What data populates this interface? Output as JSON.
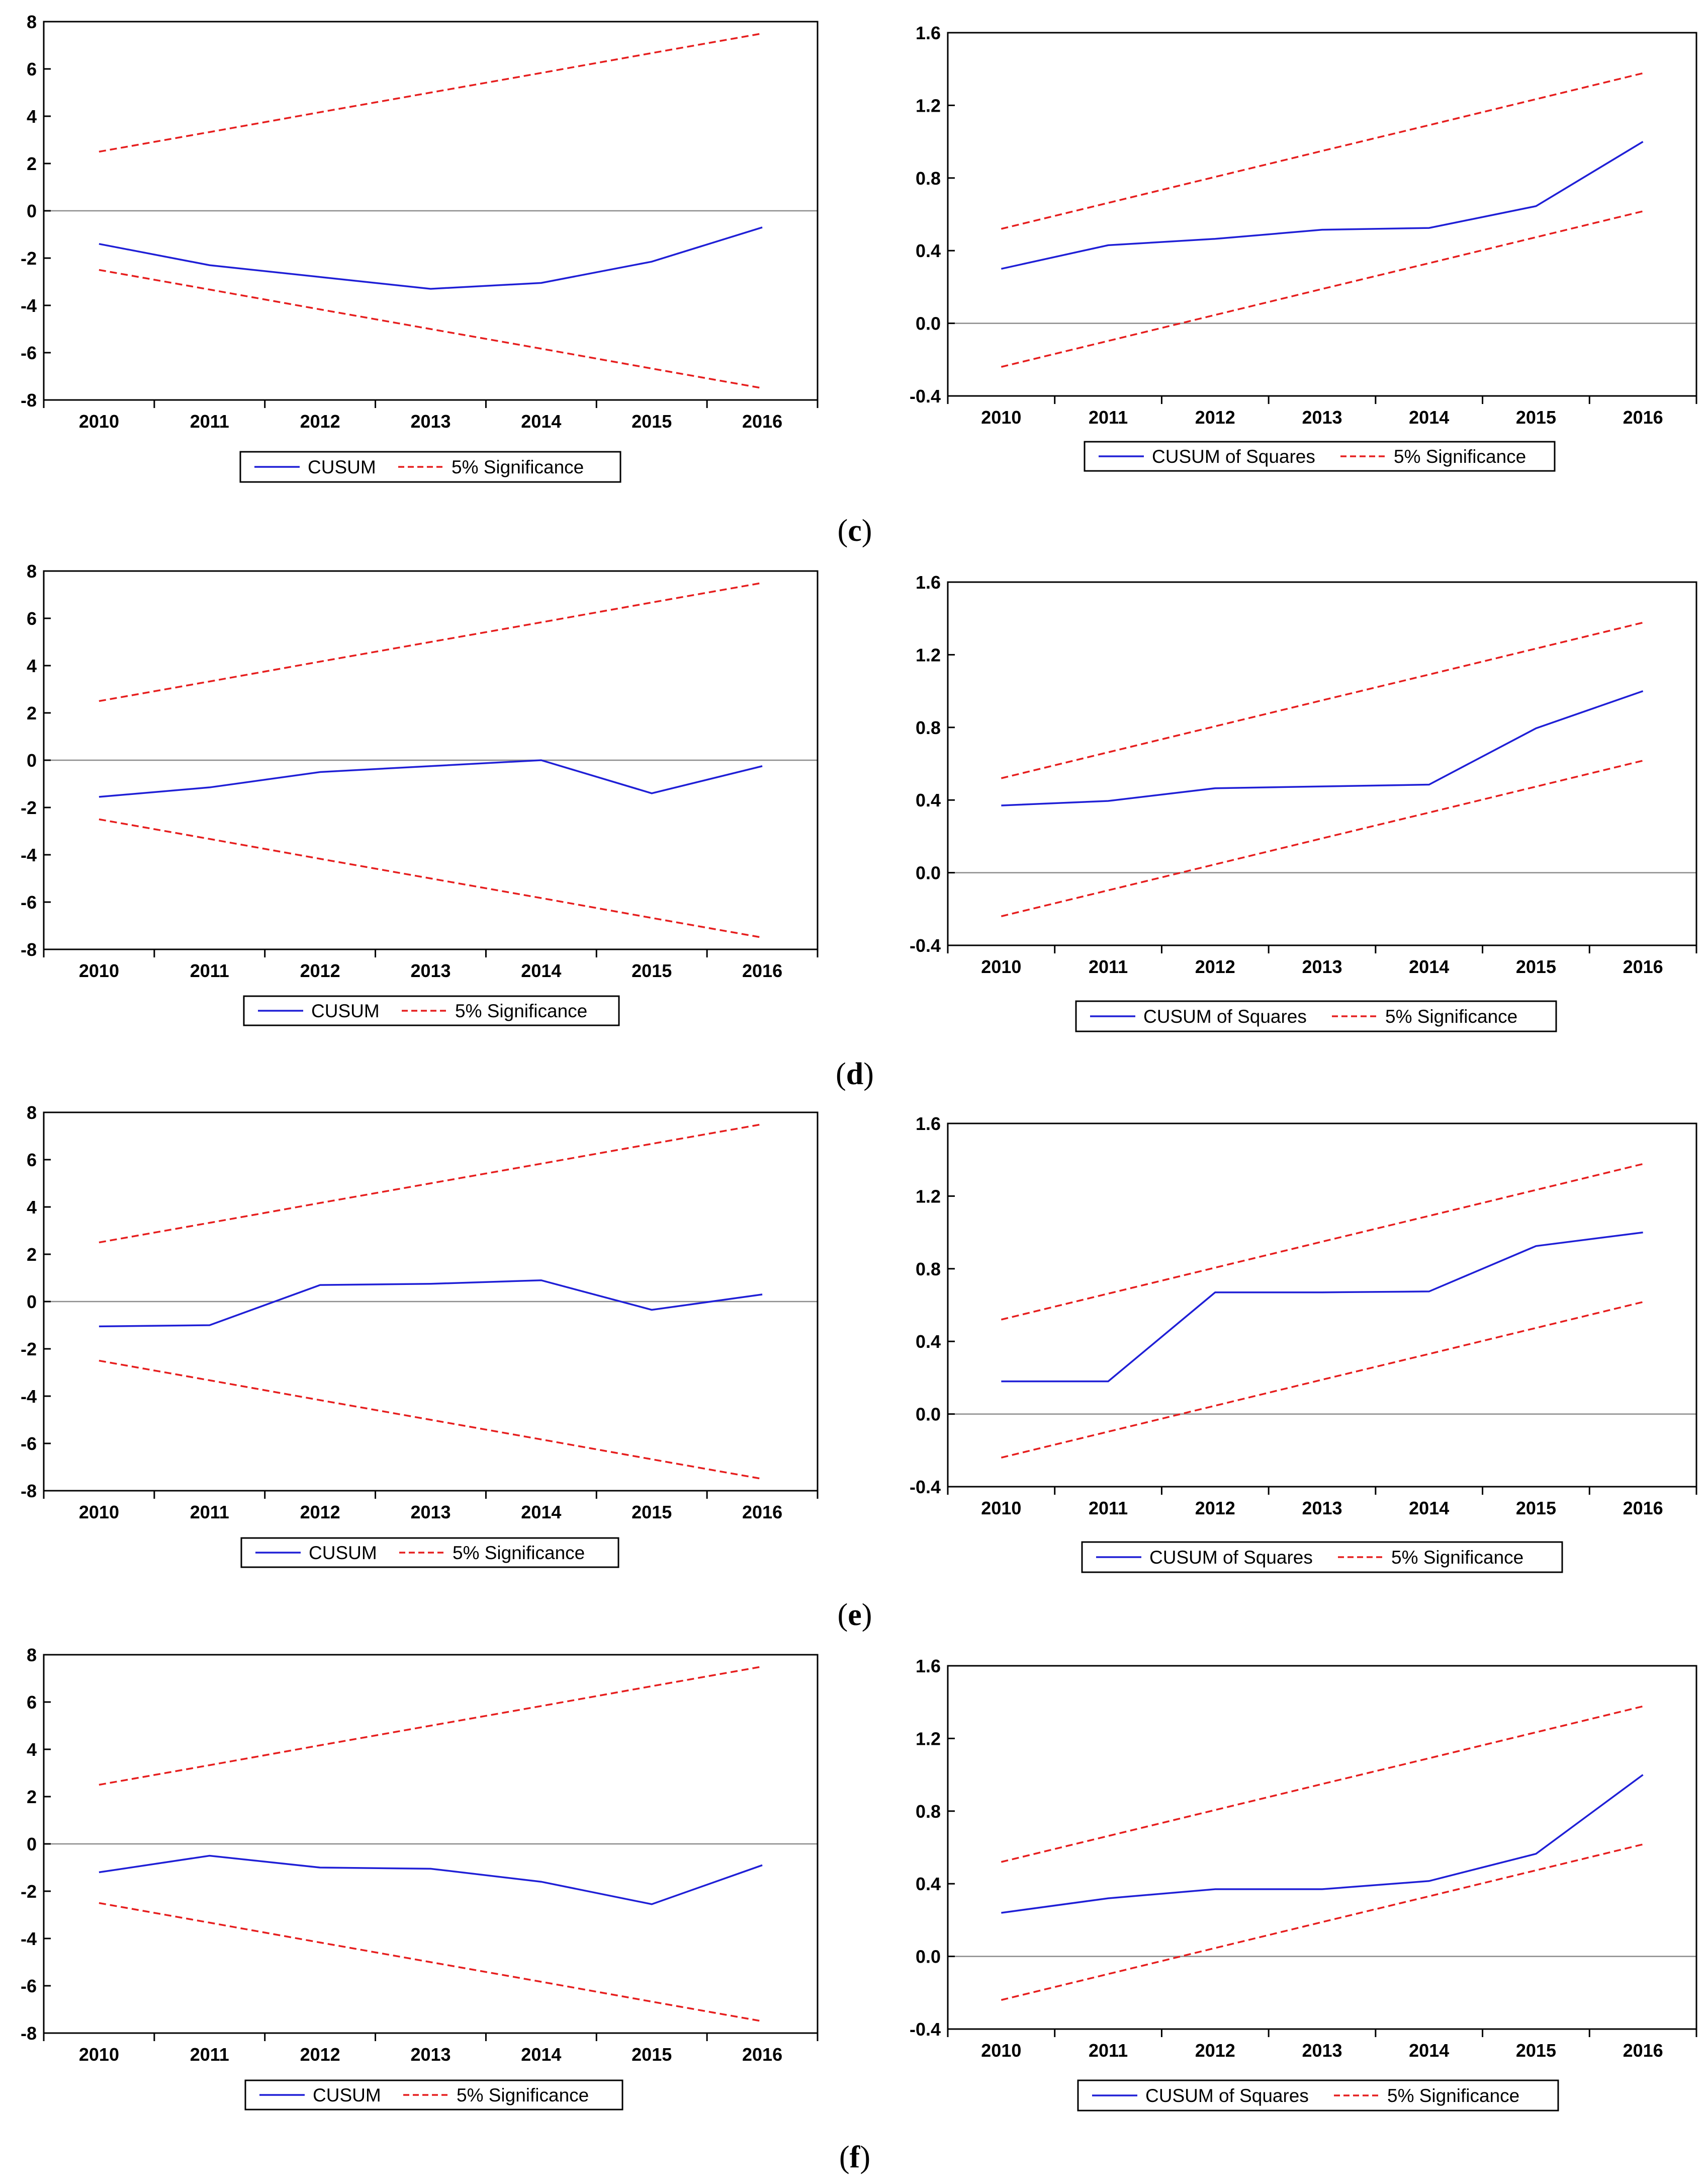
{
  "colors": {
    "cusum": "#1f1fd6",
    "significance": "#e61e1e",
    "zero_line": "#8c8c8c",
    "axis": "#000000"
  },
  "groups": [
    {
      "caption_letter": "c"
    },
    {
      "caption_letter": "d"
    },
    {
      "caption_letter": "e"
    },
    {
      "caption_letter": "f"
    }
  ],
  "chart_data": [
    {
      "group": "c",
      "type": "line",
      "title": "",
      "xlabel": "",
      "ylabel": "",
      "x": [
        "2010",
        "2011",
        "2012",
        "2013",
        "2014",
        "2015",
        "2016"
      ],
      "ylim": [
        -8,
        8
      ],
      "yticks": [
        "8",
        "6",
        "4",
        "2",
        "0",
        "-2",
        "-4",
        "-6",
        "-8"
      ],
      "series": [
        {
          "name": "CUSUM",
          "values": [
            -1.4,
            -2.3,
            -2.8,
            -3.3,
            -3.05,
            -2.15,
            -0.7
          ]
        },
        {
          "name": "5% Significance upper",
          "values": [
            2.5,
            3.33,
            4.17,
            5.0,
            5.83,
            6.67,
            7.5
          ]
        },
        {
          "name": "5% Significance lower",
          "values": [
            -2.5,
            -3.33,
            -4.17,
            -5.0,
            -5.83,
            -6.67,
            -7.5
          ]
        }
      ],
      "legend": [
        "CUSUM",
        "5% Significance"
      ]
    },
    {
      "group": "c",
      "type": "line",
      "title": "",
      "xlabel": "",
      "ylabel": "",
      "x": [
        "2010",
        "2011",
        "2012",
        "2013",
        "2014",
        "2015",
        "2016"
      ],
      "ylim": [
        -0.4,
        1.6
      ],
      "yticks": [
        "1.6",
        "1.2",
        "0.8",
        "0.4",
        "0.0",
        "-0.4"
      ],
      "series": [
        {
          "name": "CUSUM of Squares",
          "values": [
            0.3,
            0.43,
            0.465,
            0.515,
            0.525,
            0.645,
            1.0
          ]
        },
        {
          "name": "5% Significance upper",
          "values": [
            0.52,
            0.663,
            0.806,
            0.949,
            1.091,
            1.234,
            1.377
          ]
        },
        {
          "name": "5% Significance lower",
          "values": [
            -0.24,
            -0.097,
            0.046,
            0.189,
            0.331,
            0.474,
            0.617
          ]
        }
      ],
      "legend": [
        "CUSUM of Squares",
        "5% Significance"
      ]
    },
    {
      "group": "d",
      "type": "line",
      "title": "",
      "xlabel": "",
      "ylabel": "",
      "x": [
        "2010",
        "2011",
        "2012",
        "2013",
        "2014",
        "2015",
        "2016"
      ],
      "ylim": [
        -8,
        8
      ],
      "yticks": [
        "8",
        "6",
        "4",
        "2",
        "0",
        "-2",
        "-4",
        "-6",
        "-8"
      ],
      "series": [
        {
          "name": "CUSUM",
          "values": [
            -1.55,
            -1.15,
            -0.5,
            -0.25,
            0.0,
            -1.4,
            -0.25
          ]
        },
        {
          "name": "5% Significance upper",
          "values": [
            2.5,
            3.33,
            4.17,
            5.0,
            5.83,
            6.67,
            7.5
          ]
        },
        {
          "name": "5% Significance lower",
          "values": [
            -2.5,
            -3.33,
            -4.17,
            -5.0,
            -5.83,
            -6.67,
            -7.5
          ]
        }
      ],
      "legend": [
        "CUSUM",
        "5% Significance"
      ]
    },
    {
      "group": "d",
      "type": "line",
      "title": "",
      "xlabel": "",
      "ylabel": "",
      "x": [
        "2010",
        "2011",
        "2012",
        "2013",
        "2014",
        "2015",
        "2016"
      ],
      "ylim": [
        -0.4,
        1.6
      ],
      "yticks": [
        "1.6",
        "1.2",
        "0.8",
        "0.4",
        "0.0",
        "-0.4"
      ],
      "series": [
        {
          "name": "CUSUM of Squares",
          "values": [
            0.37,
            0.395,
            0.465,
            0.475,
            0.485,
            0.795,
            1.0
          ]
        },
        {
          "name": "5% Significance upper",
          "values": [
            0.52,
            0.663,
            0.806,
            0.949,
            1.091,
            1.234,
            1.377
          ]
        },
        {
          "name": "5% Significance lower",
          "values": [
            -0.24,
            -0.097,
            0.046,
            0.189,
            0.331,
            0.474,
            0.617
          ]
        }
      ],
      "legend": [
        "CUSUM of Squares",
        "5% Significance"
      ]
    },
    {
      "group": "e",
      "type": "line",
      "title": "",
      "xlabel": "",
      "ylabel": "",
      "x": [
        "2010",
        "2011",
        "2012",
        "2013",
        "2014",
        "2015",
        "2016"
      ],
      "ylim": [
        -8,
        8
      ],
      "yticks": [
        "8",
        "6",
        "4",
        "2",
        "0",
        "-2",
        "-4",
        "-6",
        "-8"
      ],
      "series": [
        {
          "name": "CUSUM",
          "values": [
            -1.05,
            -1.0,
            0.7,
            0.75,
            0.9,
            -0.35,
            0.3
          ]
        },
        {
          "name": "5% Significance upper",
          "values": [
            2.5,
            3.33,
            4.17,
            5.0,
            5.83,
            6.67,
            7.5
          ]
        },
        {
          "name": "5% Significance lower",
          "values": [
            -2.5,
            -3.33,
            -4.17,
            -5.0,
            -5.83,
            -6.67,
            -7.5
          ]
        }
      ],
      "legend": [
        "CUSUM",
        "5% Significance"
      ]
    },
    {
      "group": "e",
      "type": "line",
      "title": "",
      "xlabel": "",
      "ylabel": "",
      "x": [
        "2010",
        "2011",
        "2012",
        "2013",
        "2014",
        "2015",
        "2016"
      ],
      "ylim": [
        -0.4,
        1.6
      ],
      "yticks": [
        "1.6",
        "1.2",
        "0.8",
        "0.4",
        "0.0",
        "-0.4"
      ],
      "series": [
        {
          "name": "CUSUM of Squares",
          "values": [
            0.18,
            0.18,
            0.67,
            0.67,
            0.675,
            0.925,
            1.0
          ]
        },
        {
          "name": "5% Significance upper",
          "values": [
            0.52,
            0.663,
            0.806,
            0.949,
            1.091,
            1.234,
            1.377
          ]
        },
        {
          "name": "5% Significance lower",
          "values": [
            -0.24,
            -0.097,
            0.046,
            0.189,
            0.331,
            0.474,
            0.617
          ]
        }
      ],
      "legend": [
        "CUSUM of Squares",
        "5% Significance"
      ]
    },
    {
      "group": "f",
      "type": "line",
      "title": "",
      "xlabel": "",
      "ylabel": "",
      "x": [
        "2010",
        "2011",
        "2012",
        "2013",
        "2014",
        "2015",
        "2016"
      ],
      "ylim": [
        -8,
        8
      ],
      "yticks": [
        "8",
        "6",
        "4",
        "2",
        "0",
        "-2",
        "-4",
        "-6",
        "-8"
      ],
      "series": [
        {
          "name": "CUSUM",
          "values": [
            -1.2,
            -0.5,
            -1.0,
            -1.05,
            -1.6,
            -2.55,
            -0.9
          ]
        },
        {
          "name": "5% Significance upper",
          "values": [
            2.5,
            3.33,
            4.17,
            5.0,
            5.83,
            6.67,
            7.5
          ]
        },
        {
          "name": "5% Significance lower",
          "values": [
            -2.5,
            -3.33,
            -4.17,
            -5.0,
            -5.83,
            -6.67,
            -7.5
          ]
        }
      ],
      "legend": [
        "CUSUM",
        "5% Significance"
      ]
    },
    {
      "group": "f",
      "type": "line",
      "title": "",
      "xlabel": "",
      "ylabel": "",
      "x": [
        "2010",
        "2011",
        "2012",
        "2013",
        "2014",
        "2015",
        "2016"
      ],
      "ylim": [
        -0.4,
        1.6
      ],
      "yticks": [
        "1.6",
        "1.2",
        "0.8",
        "0.4",
        "0.0",
        "-0.4"
      ],
      "series": [
        {
          "name": "CUSUM of Squares",
          "values": [
            0.24,
            0.32,
            0.37,
            0.37,
            0.415,
            0.565,
            1.0
          ]
        },
        {
          "name": "5% Significance upper",
          "values": [
            0.52,
            0.663,
            0.806,
            0.949,
            1.091,
            1.234,
            1.377
          ]
        },
        {
          "name": "5% Significance lower",
          "values": [
            -0.24,
            -0.097,
            0.046,
            0.189,
            0.331,
            0.474,
            0.617
          ]
        }
      ],
      "legend": [
        "CUSUM of Squares",
        "5% Significance"
      ]
    }
  ]
}
